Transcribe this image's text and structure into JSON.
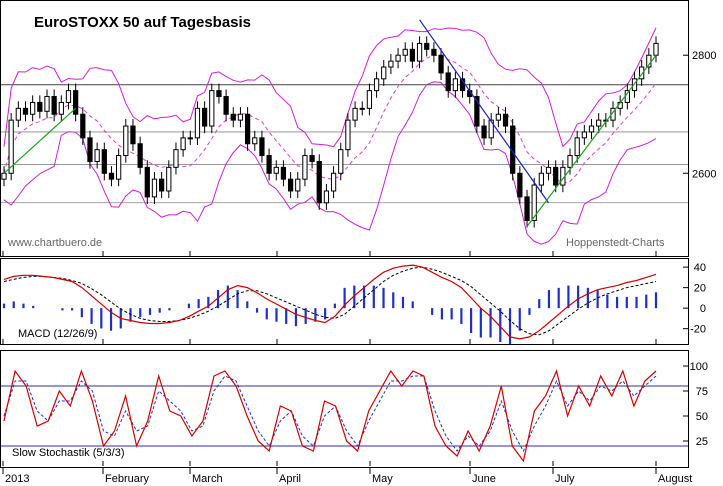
{
  "chart_data": [
    {
      "type": "candlestick",
      "title": "EuroSTOXX 50 auf Tagesbasis",
      "watermark_left": "www.chartbuero.de",
      "watermark_right": "Hoppenstedt-Charts",
      "y_ticks": [
        2600,
        2800
      ],
      "y_tick_labels": [
        "2600",
        "2800"
      ],
      "ylim": [
        2470,
        2880
      ],
      "horizontal_lines": [
        2750,
        2670,
        2615,
        2550
      ],
      "colors": {
        "candle": "#000000",
        "bollinger": "#d020d0",
        "moving_average": "#e040c0",
        "trend_down": "#2020c0",
        "trend_up": "#20a020"
      },
      "series": [
        {
          "values": [
            2600,
            2690,
            2710,
            2700,
            2720,
            2705,
            2730,
            2700,
            2720,
            2740,
            2700,
            2660,
            2620,
            2640,
            2600,
            2590,
            2630,
            2680,
            2650,
            2610,
            2560,
            2590,
            2570,
            2610,
            2640,
            2660,
            2660,
            2710,
            2680,
            2740,
            2730,
            2700,
            2690,
            2700,
            2650,
            2660,
            2630,
            2600,
            2610,
            2590,
            2570,
            2590,
            2630,
            2620,
            2550,
            2570,
            2600,
            2640,
            2690,
            2710,
            2710,
            2740,
            2760,
            2780,
            2790,
            2800,
            2810,
            2790,
            2820,
            2810,
            2800,
            2770,
            2740,
            2760,
            2740,
            2730,
            2680,
            2660,
            2690,
            2700,
            2680,
            2600,
            2560,
            2520,
            2580,
            2600,
            2610,
            2580,
            2610,
            2630,
            2660,
            2670,
            2680,
            2690,
            2690,
            2710,
            2720,
            2740,
            2760,
            2780,
            2800,
            2820
          ]
        }
      ]
    },
    {
      "type": "line",
      "title": "",
      "label": "MACD (12/26/9)",
      "y_ticks": [
        40,
        20,
        0,
        -20
      ],
      "y_tick_labels": [
        "40",
        "20",
        "0",
        "-20"
      ],
      "ylim": [
        -33,
        45
      ],
      "series": [
        {
          "values": [
            28,
            31,
            32,
            32,
            31,
            30,
            28,
            26,
            20,
            12,
            4,
            -4,
            -10,
            -12,
            -14,
            -15,
            -15,
            -14,
            -12,
            -8,
            -3,
            2,
            10,
            18,
            22,
            20,
            15,
            9,
            4,
            -1,
            -6,
            -9,
            -12,
            -14,
            -8,
            3,
            12,
            20,
            28,
            35,
            39,
            41,
            42,
            40,
            35,
            30,
            26,
            20,
            10,
            0,
            -8,
            -18,
            -28,
            -30,
            -28,
            -22,
            -14,
            -6,
            2,
            9,
            14,
            18,
            20,
            22,
            25,
            27,
            30,
            33
          ]
        },
        {
          "values": [
            26,
            28,
            30,
            31,
            31,
            30,
            29,
            27,
            24,
            19,
            13,
            6,
            -1,
            -6,
            -10,
            -12,
            -13,
            -13,
            -12,
            -10,
            -7,
            -3,
            2,
            8,
            14,
            17,
            17,
            14,
            10,
            6,
            2,
            -2,
            -6,
            -9,
            -10,
            -6,
            2,
            10,
            18,
            26,
            32,
            36,
            39,
            40,
            38,
            35,
            31,
            27,
            21,
            13,
            5,
            -3,
            -12,
            -20,
            -25,
            -26,
            -22,
            -15,
            -8,
            -1,
            5,
            10,
            14,
            17,
            20,
            22,
            24,
            26
          ]
        }
      ]
    },
    {
      "type": "line",
      "title": "",
      "label": "Slow Stochastik (5/3/3)",
      "y_ticks": [
        100,
        75,
        50,
        25
      ],
      "y_tick_labels": [
        "100",
        "75",
        "50",
        "25"
      ],
      "ylim": [
        0,
        112
      ],
      "reference_lines": [
        80,
        20
      ],
      "series": [
        {
          "values": [
            45,
            95,
            80,
            40,
            45,
            75,
            60,
            95,
            65,
            20,
            35,
            70,
            20,
            45,
            90,
            55,
            50,
            30,
            45,
            90,
            95,
            80,
            50,
            25,
            15,
            60,
            55,
            20,
            15,
            65,
            60,
            25,
            15,
            55,
            75,
            95,
            80,
            95,
            90,
            40,
            20,
            10,
            35,
            15,
            40,
            80,
            20,
            5,
            55,
            70,
            95,
            50,
            80,
            60,
            90,
            70,
            95,
            60,
            85,
            95
          ]
        },
        {
          "values": [
            50,
            85,
            85,
            55,
            45,
            65,
            65,
            85,
            75,
            35,
            30,
            55,
            35,
            40,
            75,
            65,
            55,
            35,
            40,
            75,
            90,
            85,
            60,
            35,
            20,
            45,
            55,
            30,
            20,
            50,
            60,
            35,
            20,
            45,
            65,
            85,
            85,
            90,
            90,
            55,
            30,
            15,
            30,
            20,
            35,
            65,
            35,
            15,
            40,
            60,
            85,
            60,
            75,
            65,
            80,
            75,
            85,
            70,
            80,
            90
          ]
        }
      ]
    }
  ],
  "x_axis": {
    "labels": [
      "2013",
      "February",
      "March",
      "April",
      "May",
      "June",
      "July",
      "August"
    ]
  }
}
